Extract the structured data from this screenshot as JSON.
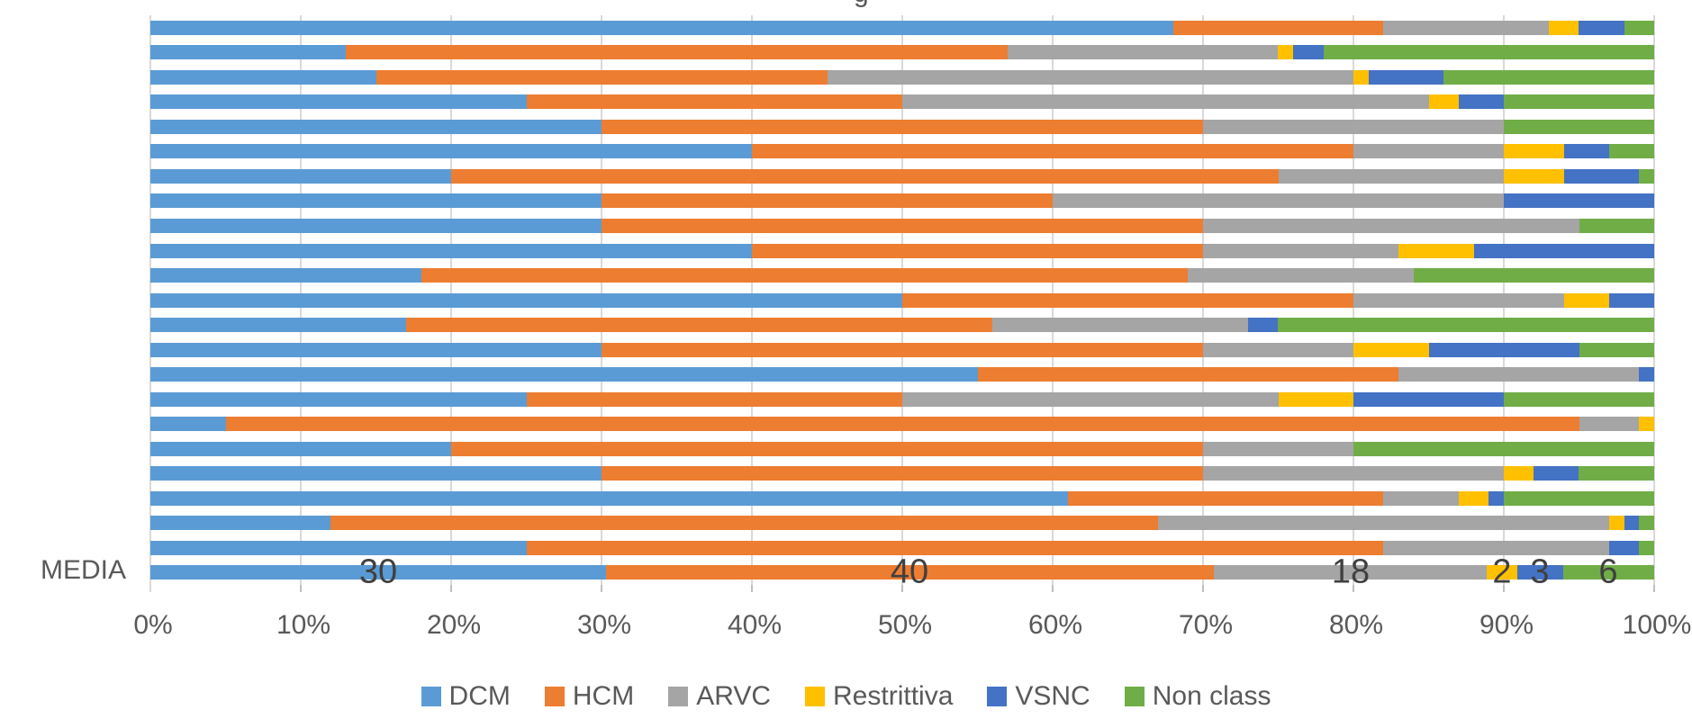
{
  "title_partial": "g",
  "colors": {
    "dcm": "#5B9BD5",
    "hcm": "#ED7D31",
    "arvc": "#A5A5A5",
    "restrittiva": "#FFC000",
    "vsnc": "#4472C4",
    "non_class": "#70AD47",
    "gridline": "#D9D9D9",
    "axis_text": "#595959",
    "data_label_text": "#404040"
  },
  "legend": {
    "position": "bottom",
    "items": [
      {
        "label": "DCM",
        "color": "#5B9BD5"
      },
      {
        "label": "HCM",
        "color": "#ED7D31"
      },
      {
        "label": "ARVC",
        "color": "#A5A5A5"
      },
      {
        "label": "Restrittiva",
        "color": "#FFC000"
      },
      {
        "label": "VSNC",
        "color": "#4472C4"
      },
      {
        "label": "Non class",
        "color": "#70AD47"
      }
    ]
  },
  "media_row": {
    "category": "MEDIA",
    "labels": [
      "30",
      "40",
      "18",
      "2",
      "3",
      "6"
    ]
  },
  "chart_data": {
    "type": "bar",
    "variant": "stacked-100-horizontal",
    "grid": true,
    "legend_position": "bottom",
    "x_axis": {
      "range": [
        0,
        100
      ],
      "unit": "%",
      "ticks": [
        "0%",
        "10%",
        "20%",
        "30%",
        "40%",
        "50%",
        "60%",
        "70%",
        "80%",
        "90%",
        "100%"
      ]
    },
    "categories": [
      "",
      "",
      "",
      "",
      "",
      "",
      "",
      "",
      "",
      "",
      "",
      "",
      "",
      "",
      "",
      "",
      "",
      "",
      "",
      "",
      "",
      "",
      "MEDIA"
    ],
    "series": [
      {
        "name": "DCM",
        "color": "#5B9BD5",
        "values": [
          68,
          13,
          15,
          25,
          30,
          40,
          20,
          30,
          30,
          40,
          18,
          50,
          17,
          30,
          55,
          25,
          5,
          20,
          30,
          61,
          12,
          25,
          30
        ]
      },
      {
        "name": "HCM",
        "color": "#ED7D31",
        "values": [
          14,
          44,
          30,
          25,
          40,
          40,
          55,
          30,
          40,
          30,
          51,
          30,
          39,
          40,
          28,
          25,
          90,
          50,
          40,
          21,
          55,
          57,
          40
        ]
      },
      {
        "name": "ARVC",
        "color": "#A5A5A5",
        "values": [
          11,
          18,
          35,
          35,
          20,
          10,
          15,
          30,
          25,
          13,
          15,
          14,
          17,
          10,
          16,
          25,
          4,
          10,
          20,
          5,
          30,
          15,
          18
        ]
      },
      {
        "name": "Restrittiva",
        "color": "#FFC000",
        "values": [
          2,
          1,
          1,
          2,
          0,
          4,
          4,
          0,
          0,
          5,
          0,
          3,
          0,
          5,
          0,
          5,
          1,
          0,
          2,
          2,
          1,
          0,
          2
        ]
      },
      {
        "name": "VSNC",
        "color": "#4472C4",
        "values": [
          3,
          2,
          5,
          3,
          0,
          3,
          5,
          10,
          0,
          12,
          0,
          3,
          2,
          10,
          1,
          10,
          0,
          0,
          3,
          1,
          1,
          2,
          3
        ]
      },
      {
        "name": "Non class",
        "color": "#70AD47",
        "values": [
          2,
          22,
          14,
          10,
          10,
          3,
          1,
          0,
          5,
          0,
          16,
          0,
          25,
          5,
          0,
          10,
          0,
          20,
          5,
          10,
          1,
          1,
          6
        ]
      }
    ],
    "data_labels": {
      "row_index": 22,
      "row_category": "MEDIA",
      "values": [
        30,
        40,
        18,
        2,
        3,
        6
      ]
    }
  }
}
